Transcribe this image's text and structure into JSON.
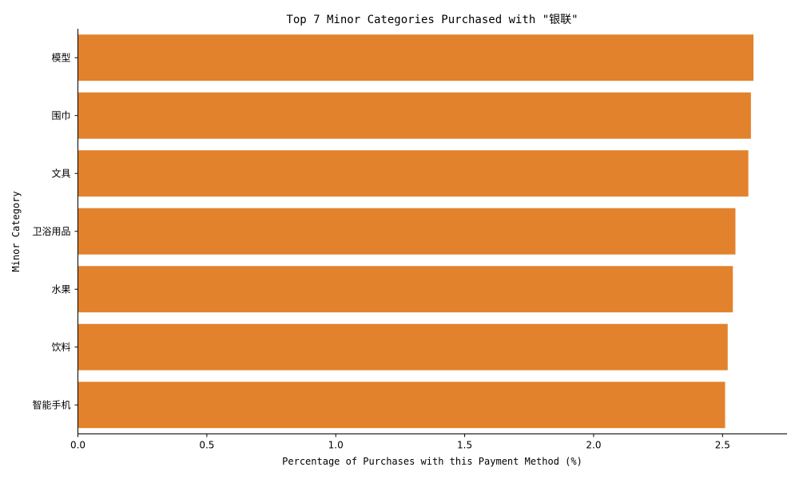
{
  "chart_data": {
    "type": "bar",
    "orientation": "horizontal",
    "title": "Top 7 Minor Categories Purchased with \"银联\"",
    "xlabel": "Percentage of Purchases with this Payment Method (%)",
    "ylabel": "Minor Category",
    "categories": [
      "模型",
      "围巾",
      "文具",
      "卫浴用品",
      "水果",
      "饮料",
      "智能手机"
    ],
    "values": [
      2.62,
      2.61,
      2.6,
      2.55,
      2.54,
      2.52,
      2.51
    ],
    "xlim": [
      0,
      2.75
    ],
    "xticks": [
      0.0,
      0.5,
      1.0,
      1.5,
      2.0,
      2.5
    ],
    "xtick_labels": [
      "0.0",
      "0.5",
      "1.0",
      "1.5",
      "2.0",
      "2.5"
    ],
    "grid": false,
    "legend": "none",
    "bar_color": "#e2822c"
  }
}
